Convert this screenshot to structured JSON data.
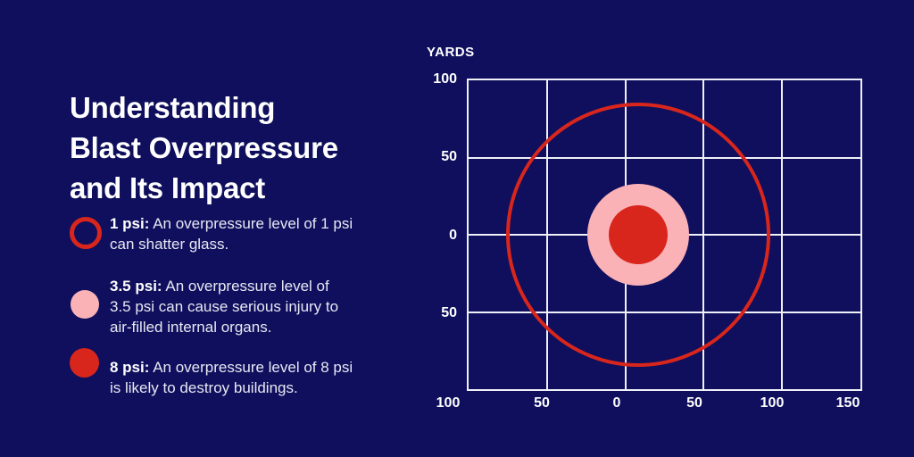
{
  "colors": {
    "background": "#0f0f5d",
    "red": "#d9261c",
    "pink": "#fab2b7",
    "grid_line": "#f0f0f8",
    "title_text": "#ffffff",
    "body_text": "#e8e8f4"
  },
  "title": {
    "line1": "Understanding",
    "line2": "Blast Overpressure",
    "line3": "and Its Impact"
  },
  "legend": {
    "items": [
      {
        "marker": "red-outline-ring",
        "term": "1 psi:",
        "description": "An overpressure level of 1 psi\ncan shatter glass."
      },
      {
        "marker": "pink-filled-circle",
        "term": "3.5 psi:",
        "description": "An overpressure level of\n3.5 psi can cause serious injury to\nair-filled internal organs."
      },
      {
        "marker": "red-filled-circle",
        "term": "8 psi:",
        "description": "An overpressure level of 8 psi\nis likely to destroy buildings."
      }
    ]
  },
  "chart": {
    "unit_label": "YARDS",
    "y_ticks": [
      "100",
      "50",
      "0",
      "50"
    ],
    "x_ticks": [
      "100",
      "50",
      "0",
      "50",
      "100",
      "150"
    ]
  },
  "chart_data": {
    "type": "concentric-circles-map",
    "title": "Blast overpressure impact radii",
    "unit": "yards",
    "grid": true,
    "grid_spacing_yards": 50,
    "x_tick_labels": [
      100,
      50,
      0,
      50,
      100,
      150
    ],
    "y_tick_labels": [
      100,
      50,
      0,
      50
    ],
    "center_offset_yards": {
      "x": 9,
      "y": 0
    },
    "rings": [
      {
        "label": "1 psi",
        "radius_yards": 84,
        "style": "outline",
        "color": "#d9261c",
        "effect": "can shatter glass"
      },
      {
        "label": "3.5 psi",
        "radius_yards": 32,
        "style": "filled",
        "color": "#fab2b7",
        "effect": "can cause serious injury to air-filled internal organs"
      },
      {
        "label": "8 psi",
        "radius_yards": 19,
        "style": "filled",
        "color": "#d9261c",
        "effect": "is likely to destroy buildings"
      }
    ]
  }
}
